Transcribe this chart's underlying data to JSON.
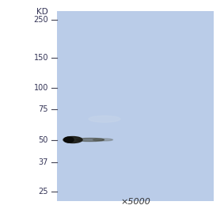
{
  "bg_color": "#bacce8",
  "white_color": "#ffffff",
  "kd_label": "KD",
  "markers": [
    250,
    150,
    100,
    75,
    50,
    37,
    25
  ],
  "band_kd": 50,
  "xlabel": "×5000",
  "xlabel_fontsize": 8,
  "marker_fontsize": 7,
  "kd_fontsize": 7.5,
  "tick_color": "#444455",
  "text_color": "#333355",
  "fig_w": 2.83,
  "fig_h": 2.64,
  "dpi": 100
}
